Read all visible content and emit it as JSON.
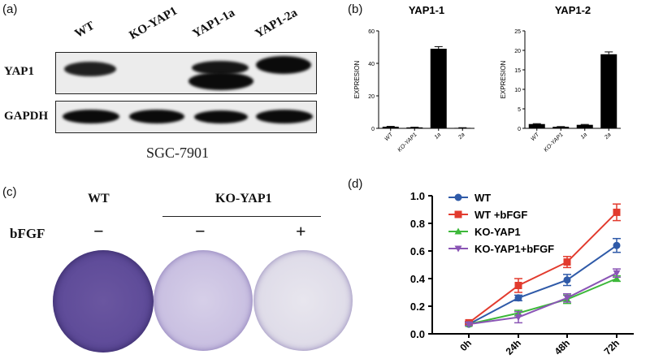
{
  "panel_labels": {
    "a": "(a)",
    "b": "(b)",
    "c": "(c)",
    "d": "(d)"
  },
  "blot": {
    "lanes": [
      "WT",
      "KO-YAP1",
      "YAP1-1a",
      "YAP1-2a"
    ],
    "rows": [
      "YAP1",
      "GAPDH"
    ],
    "cell_line": "SGC-7901"
  },
  "panel_c": {
    "group_wt": "WT",
    "group_ko": "KO-YAP1",
    "row_label": "bFGF",
    "signs": [
      "−",
      "−",
      "+"
    ],
    "colors": {
      "dense": "#6a56a0",
      "light": "#c7bde0",
      "pale": "#e8e6ee"
    }
  },
  "chart_data": [
    {
      "type": "bar",
      "title": "YAP1-1",
      "ylabel": "EXPRESION",
      "categories": [
        "WT",
        "KO-YAP1",
        "1a",
        "2a"
      ],
      "values": [
        1.0,
        0.6,
        49,
        0.3
      ],
      "errors": [
        0.2,
        0.1,
        1.3,
        0.1
      ],
      "ylim": [
        0,
        60
      ],
      "yticks": [
        0,
        20,
        40,
        60
      ],
      "color": "#000000"
    },
    {
      "type": "bar",
      "title": "YAP1-2",
      "ylabel": "EXPRESION",
      "categories": [
        "WT",
        "KO-YAP1",
        "1a",
        "2a"
      ],
      "values": [
        1.1,
        0.4,
        0.9,
        19
      ],
      "errors": [
        0.1,
        0.05,
        0.1,
        0.6
      ],
      "ylim": [
        0,
        25
      ],
      "yticks": [
        0,
        5,
        10,
        15,
        20,
        25
      ],
      "color": "#000000"
    },
    {
      "type": "line",
      "categories": [
        "0h",
        "24h",
        "48h",
        "72h"
      ],
      "ylim": [
        0.0,
        1.0
      ],
      "yticks": [
        "0.0",
        "0.2",
        "0.4",
        "0.6",
        "0.8",
        "1.0"
      ],
      "series": [
        {
          "name": "WT",
          "values": [
            0.07,
            0.26,
            0.39,
            0.64
          ],
          "errors": [
            0.01,
            0.02,
            0.04,
            0.05
          ],
          "color": "#2f5aa8",
          "marker": "circle"
        },
        {
          "name": "WT +bFGF",
          "values": [
            0.08,
            0.35,
            0.52,
            0.88
          ],
          "errors": [
            0.01,
            0.05,
            0.04,
            0.06
          ],
          "color": "#e23b2e",
          "marker": "square"
        },
        {
          "name": "KO-YAP1",
          "values": [
            0.07,
            0.15,
            0.25,
            0.4
          ],
          "errors": [
            0.01,
            0.02,
            0.03,
            0.02
          ],
          "color": "#3db83a",
          "marker": "triangle-up"
        },
        {
          "name": "KO-YAP1+bFGF",
          "values": [
            0.07,
            0.12,
            0.26,
            0.44
          ],
          "errors": [
            0.01,
            0.04,
            0.03,
            0.03
          ],
          "color": "#8a55b5",
          "marker": "triangle-down"
        }
      ]
    }
  ]
}
